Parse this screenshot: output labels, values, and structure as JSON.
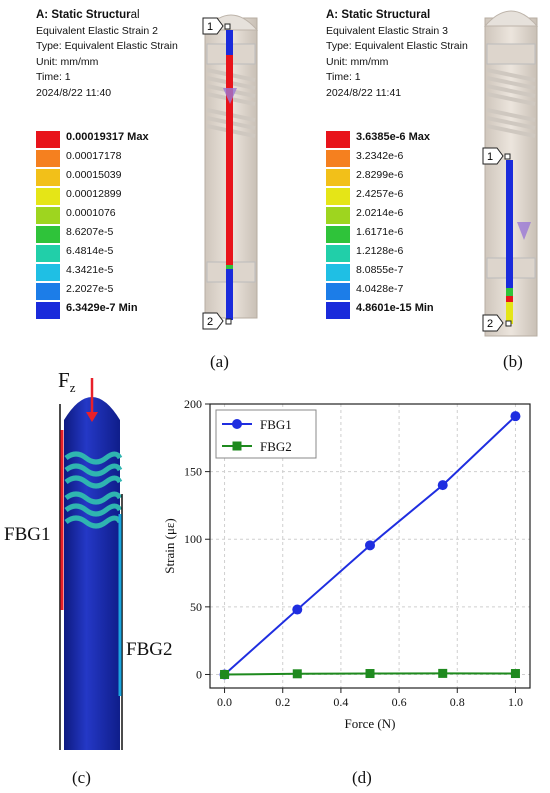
{
  "panel_a": {
    "title_prefix": "A: Static Structur",
    "title_suffix": "al",
    "lines": [
      "Equivalent Elastic Strain 2",
      "Type: Equivalent Elastic Strain",
      "Unit: mm/mm",
      "Time: 1",
      "2024/8/22 11:40"
    ],
    "legend": [
      {
        "label": "0.00019317 Max",
        "color": "#e8141b",
        "bold": true
      },
      {
        "label": "0.00017178",
        "color": "#f5801f",
        "bold": false
      },
      {
        "label": "0.00015039",
        "color": "#f2c019",
        "bold": false
      },
      {
        "label": "0.00012899",
        "color": "#e5e517",
        "bold": false
      },
      {
        "label": "0.0001076",
        "color": "#9ed51f",
        "bold": false
      },
      {
        "label": "8.6207e-5",
        "color": "#2fc33a",
        "bold": false
      },
      {
        "label": "6.4814e-5",
        "color": "#21cfa9",
        "bold": false
      },
      {
        "label": "4.3421e-5",
        "color": "#1fbfe4",
        "bold": false
      },
      {
        "label": "2.2027e-5",
        "color": "#1c7de8",
        "bold": false
      },
      {
        "label": "6.3429e-7 Min",
        "color": "#1a2bdb",
        "bold": true
      }
    ],
    "probe_top": "1",
    "probe_bottom": "2",
    "caption": "(a)"
  },
  "panel_b": {
    "title_prefix": "A: Static Structural",
    "lines": [
      "Equivalent Elastic Strain 3",
      "Type: Equivalent Elastic Strain",
      "Unit: mm/mm",
      "Time: 1",
      "2024/8/22 11:41"
    ],
    "legend": [
      {
        "label": "3.6385e-6 Max",
        "color": "#e8141b",
        "bold": true
      },
      {
        "label": "3.2342e-6",
        "color": "#f5801f",
        "bold": false
      },
      {
        "label": "2.8299e-6",
        "color": "#f2c019",
        "bold": false
      },
      {
        "label": "2.4257e-6",
        "color": "#e5e517",
        "bold": false
      },
      {
        "label": "2.0214e-6",
        "color": "#9ed51f",
        "bold": false
      },
      {
        "label": "1.6171e-6",
        "color": "#2fc33a",
        "bold": false
      },
      {
        "label": "1.2128e-6",
        "color": "#21cfa9",
        "bold": false
      },
      {
        "label": "8.0855e-7",
        "color": "#1fbfe4",
        "bold": false
      },
      {
        "label": "4.0428e-7",
        "color": "#1c7de8",
        "bold": false
      },
      {
        "label": "4.8601e-15 Min",
        "color": "#1a2bdb",
        "bold": true
      }
    ],
    "probe_top": "1",
    "probe_bottom": "2",
    "caption": "(b)"
  },
  "panel_c": {
    "force_label": "F",
    "force_sub": "z",
    "fbg1_label": "FBG1",
    "fbg2_label": "FBG2",
    "caption": "(c)",
    "colors": {
      "fbg1": "#e8202a",
      "fbg2": "#1ba5e0",
      "body": "#1d2fb8"
    }
  },
  "panel_d": {
    "caption": "(d)"
  },
  "chart_data": {
    "type": "line",
    "xlabel": "Force (N)",
    "ylabel": "Strain (με)",
    "xlim": [
      -0.05,
      1.05
    ],
    "ylim": [
      -10,
      200
    ],
    "xticks": [
      "0.0",
      "0.2",
      "0.4",
      "0.6",
      "0.8",
      "1.0"
    ],
    "xtick_values": [
      0,
      0.2,
      0.4,
      0.6,
      0.8,
      1.0
    ],
    "yticks": [
      "0",
      "50",
      "100",
      "150",
      "200"
    ],
    "ytick_values": [
      0,
      50,
      100,
      150,
      200
    ],
    "grid": true,
    "legend_position": "top-left",
    "series": [
      {
        "name": "FBG1",
        "color": "#1f2ee0",
        "marker": "circle",
        "x": [
          0,
          0.25,
          0.5,
          0.75,
          1.0
        ],
        "y": [
          0,
          48,
          95.5,
          140,
          191
        ]
      },
      {
        "name": "FBG2",
        "color": "#1e8a1e",
        "marker": "square",
        "x": [
          0,
          0.25,
          0.5,
          0.75,
          1.0
        ],
        "y": [
          0,
          0.5,
          0.7,
          0.8,
          0.7
        ]
      }
    ]
  }
}
